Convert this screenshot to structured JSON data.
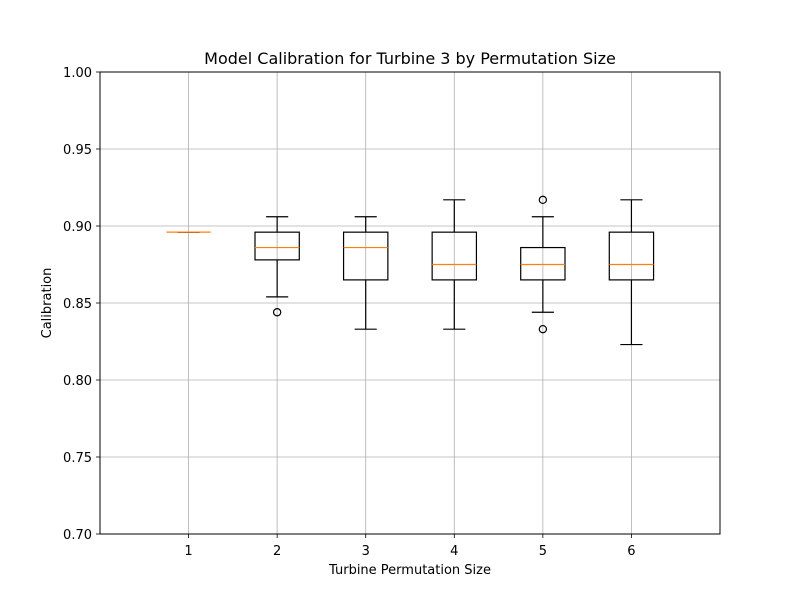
{
  "chart_data": {
    "type": "box",
    "title": "Model Calibration for Turbine 3 by Permutation Size",
    "xlabel": "Turbine Permutation Size",
    "ylabel": "Calibration",
    "xlim": [
      0,
      7
    ],
    "ylim": [
      0.7,
      1.0
    ],
    "y_ticks": [
      "0.70",
      "0.75",
      "0.80",
      "0.85",
      "0.90",
      "0.95",
      "1.00"
    ],
    "x_ticks": [
      "1",
      "2",
      "3",
      "4",
      "5",
      "6"
    ],
    "grid": true,
    "median_color": "#ff7f0e",
    "box_color": "#000000",
    "boxes": [
      {
        "x": 1,
        "whislo": 0.896,
        "q1": 0.896,
        "med": 0.896,
        "q3": 0.896,
        "whishi": 0.896,
        "fliers": []
      },
      {
        "x": 2,
        "whislo": 0.854,
        "q1": 0.878,
        "med": 0.886,
        "q3": 0.896,
        "whishi": 0.906,
        "fliers": [
          0.844
        ]
      },
      {
        "x": 3,
        "whislo": 0.833,
        "q1": 0.865,
        "med": 0.886,
        "q3": 0.896,
        "whishi": 0.906,
        "fliers": []
      },
      {
        "x": 4,
        "whislo": 0.833,
        "q1": 0.865,
        "med": 0.875,
        "q3": 0.896,
        "whishi": 0.917,
        "fliers": []
      },
      {
        "x": 5,
        "whislo": 0.844,
        "q1": 0.865,
        "med": 0.875,
        "q3": 0.886,
        "whishi": 0.906,
        "fliers": [
          0.833,
          0.917
        ]
      },
      {
        "x": 6,
        "whislo": 0.823,
        "q1": 0.865,
        "med": 0.875,
        "q3": 0.896,
        "whishi": 0.917,
        "fliers": []
      }
    ]
  }
}
